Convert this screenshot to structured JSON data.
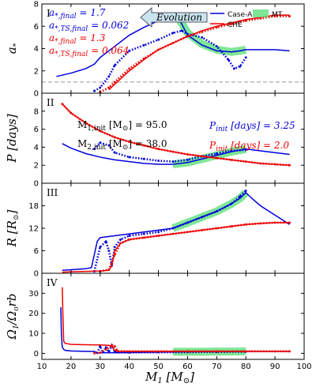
{
  "chart_data": {
    "type": "line",
    "xlabel": "M_1 [M_⊙]",
    "xlim": [
      10,
      100
    ],
    "xticks": [
      "10",
      "20",
      "30",
      "40",
      "50",
      "60",
      "70",
      "80",
      "90",
      "100"
    ],
    "legend": [
      {
        "name": "Case-A",
        "color": "#0000dd",
        "style": "line"
      },
      {
        "name": "CHE",
        "color": "#ee0000",
        "style": "line"
      },
      {
        "name": "MT",
        "color": "#5ee07a",
        "style": "band"
      }
    ],
    "colors": {
      "caseA": "#0000dd",
      "che": "#ee0000",
      "mt": "#5ee07a"
    },
    "panels": [
      {
        "id": "I",
        "ylabel": "a_*",
        "ylim": [
          0,
          8
        ],
        "yticks": [
          "0",
          "2",
          "4",
          "6",
          "8"
        ],
        "hline": 1,
        "annotations": {
          "blue1": "a_{*,final} = 1.7",
          "blue2": "a_{*,TS,final} = 0.062",
          "red1": "a_{*,final} = 1.3",
          "red2": "a_{*,TS,final} = 0.064",
          "arrow": "Evolution"
        },
        "series": [
          {
            "name": "Case-A",
            "style": "solid",
            "color": "#0000dd",
            "x": [
              15,
              20,
              25,
              28,
              30,
              35,
              40,
              45,
              50,
              55,
              57,
              60,
              65,
              70,
              75,
              78,
              80,
              85,
              90,
              95
            ],
            "y": [
              1.5,
              1.8,
              2.2,
              2.6,
              3.2,
              4.2,
              5.2,
              5.9,
              6.5,
              7.0,
              6.7,
              5.2,
              4.3,
              3.8,
              3.7,
              3.8,
              3.9,
              3.9,
              3.9,
              3.8
            ]
          },
          {
            "name": "Case-A (TS)",
            "style": "dotted",
            "color": "#0000dd",
            "x": [
              28,
              30,
              33,
              35,
              40,
              45,
              50,
              55,
              58,
              60,
              65,
              70,
              74,
              76,
              78,
              80
            ],
            "y": [
              0.2,
              0.5,
              1.5,
              2.5,
              3.8,
              4.3,
              4.8,
              5.4,
              5.6,
              5.3,
              5.0,
              4.2,
              3.0,
              2.2,
              2.4,
              3.2
            ]
          },
          {
            "name": "CHE",
            "style": "solid",
            "color": "#ee0000",
            "x": [
              33,
              35,
              40,
              45,
              50,
              55,
              60,
              65,
              70,
              75,
              80,
              85,
              90,
              95
            ],
            "y": [
              0.3,
              0.8,
              2.0,
              3.0,
              3.9,
              4.5,
              5.1,
              5.6,
              6.0,
              6.3,
              6.6,
              6.8,
              7.0,
              7.0
            ]
          },
          {
            "name": "CHE (TS)",
            "style": "dotted",
            "color": "#ee0000",
            "x": [
              30,
              33,
              35,
              40,
              45,
              50,
              55,
              60,
              65,
              70,
              75,
              80,
              85,
              90,
              95
            ],
            "y": [
              0.1,
              0.5,
              1.0,
              2.2,
              3.1,
              3.9,
              4.5,
              5.1,
              5.5,
              5.9,
              6.2,
              6.5,
              6.7,
              6.9,
              6.9
            ]
          }
        ],
        "mt_band": {
          "x": [
            55,
            57,
            60,
            65,
            70,
            75,
            78,
            80
          ],
          "y": [
            7.0,
            6.7,
            5.4,
            4.4,
            3.9,
            3.7,
            3.8,
            3.9
          ],
          "xrange": [
            55,
            80
          ]
        }
      },
      {
        "id": "II",
        "ylabel": "P [days]",
        "ylim": [
          0,
          10
        ],
        "yticks": [
          "0",
          "2",
          "4",
          "6",
          "8"
        ],
        "annotations": {
          "m1": "M_{1,init} [M_⊙] = 95.0",
          "m2": "M_{2,init} [M_⊙] = 38.0",
          "pblue": "P_{init} [days] = 3.25",
          "pred": "P_{init} [days] = 2.0"
        },
        "series": [
          {
            "name": "Case-A",
            "style": "solid",
            "color": "#0000dd",
            "x": [
              17,
              20,
              25,
              30,
              35,
              40,
              45,
              50,
              55,
              60,
              65,
              70,
              75,
              80,
              85,
              90,
              95
            ],
            "y": [
              4.4,
              3.9,
              3.3,
              2.9,
              2.6,
              2.4,
              2.2,
              2.1,
              2.1,
              2.3,
              2.7,
              3.1,
              3.5,
              3.8,
              3.6,
              3.4,
              3.2
            ]
          },
          {
            "name": "Case-A (TS)",
            "style": "dotted",
            "color": "#0000dd",
            "x": [
              28,
              30,
              33,
              35,
              40,
              45,
              50,
              55,
              60,
              65,
              70,
              75,
              80
            ],
            "y": [
              3.8,
              4.5,
              4.2,
              3.4,
              2.9,
              2.7,
              2.5,
              2.4,
              2.6,
              3.0,
              3.3,
              3.6,
              3.7
            ]
          },
          {
            "name": "CHE",
            "style": "solid",
            "color": "#ee0000",
            "x": [
              17,
              20,
              25,
              30,
              35,
              40,
              45,
              50,
              55,
              60,
              65,
              70,
              75,
              80,
              85,
              90,
              95
            ],
            "y": [
              8.8,
              7.8,
              6.7,
              5.8,
              5.1,
              4.6,
              4.2,
              3.8,
              3.5,
              3.2,
              3.0,
              2.8,
              2.6,
              2.4,
              2.2,
              2.1,
              2.0
            ]
          },
          {
            "name": "CHE (TS)",
            "style": "dotted",
            "color": "#ee0000",
            "x": [
              17,
              20,
              25,
              30,
              35,
              40,
              45,
              50,
              55,
              60,
              65,
              70,
              75,
              80,
              85,
              90,
              95
            ],
            "y": [
              8.8,
              7.8,
              6.7,
              5.8,
              5.1,
              4.6,
              4.2,
              3.8,
              3.5,
              3.2,
              3.0,
              2.8,
              2.6,
              2.4,
              2.2,
              2.1,
              2.0
            ]
          }
        ],
        "mt_band": {
          "x": [
            55,
            60,
            65,
            70,
            75,
            80
          ],
          "y": [
            2.1,
            2.3,
            2.7,
            3.1,
            3.5,
            3.8
          ],
          "xrange": [
            55,
            80
          ]
        }
      },
      {
        "id": "III",
        "ylabel": "R [R_⊙]",
        "ylim": [
          0,
          24
        ],
        "yticks": [
          "0",
          "6",
          "12",
          "18"
        ],
        "series": [
          {
            "name": "Case-A",
            "style": "solid",
            "color": "#0000dd",
            "x": [
              17,
              25,
              27,
              28,
              29,
              30,
              32,
              35,
              40,
              45,
              50,
              55,
              60,
              65,
              70,
              75,
              78,
              80,
              82,
              85,
              90,
              95
            ],
            "y": [
              0.8,
              1.2,
              1.5,
              5,
              8.5,
              9.5,
              9.7,
              10,
              10.5,
              11,
              11.5,
              12,
              13.5,
              15,
              16.5,
              18.5,
              20,
              21.5,
              20,
              18,
              15.5,
              13
            ]
          },
          {
            "name": "Case-A (TS)",
            "style": "dotted",
            "color": "#0000dd",
            "x": [
              28,
              30,
              32,
              33,
              34,
              35,
              37,
              40,
              45,
              50,
              55,
              60,
              65,
              70,
              75,
              78,
              80
            ],
            "y": [
              0.5,
              7,
              8.5,
              6,
              2,
              7,
              9,
              10,
              10.5,
              11,
              12,
              13.5,
              15,
              16.5,
              18.5,
              20.5,
              22
            ]
          },
          {
            "name": "CHE",
            "style": "solid",
            "color": "#ee0000",
            "x": [
              17,
              20,
              25,
              30,
              33,
              34,
              35,
              37,
              40,
              45,
              50,
              55,
              60,
              65,
              70,
              75,
              80,
              85,
              90,
              95
            ],
            "y": [
              0.3,
              0.4,
              0.5,
              0.6,
              0.8,
              2,
              6,
              8,
              9,
              9.5,
              10,
              10.5,
              11,
              11.5,
              12,
              12.5,
              13,
              13.3,
              13.5,
              13.5
            ]
          },
          {
            "name": "CHE (TS)",
            "style": "dotted",
            "color": "#ee0000",
            "x": [
              30,
              33,
              35,
              37,
              40,
              45,
              50,
              55,
              60,
              65,
              70,
              75,
              80,
              85,
              90,
              95
            ],
            "y": [
              0.5,
              1,
              5,
              8,
              9,
              9.5,
              10,
              10.5,
              11,
              11.5,
              12,
              12.5,
              13,
              13.3,
              13.5,
              13.5
            ]
          }
        ],
        "mt_band": {
          "x": [
            55,
            60,
            65,
            70,
            75,
            78,
            80
          ],
          "y": [
            12,
            13.5,
            15,
            16.5,
            18.5,
            20,
            21.5
          ],
          "xrange": [
            55,
            80
          ]
        }
      },
      {
        "id": "IV",
        "ylabel": "Ω_1/Ω_orb",
        "ylim": [
          -3,
          40
        ],
        "yticks": [
          "0",
          "10",
          "20",
          "30"
        ],
        "series": [
          {
            "name": "Case-A",
            "style": "solid",
            "color": "#0000dd",
            "x": [
              16.5,
              16.7,
              17,
              17.5,
              18,
              20,
              25,
              28,
              29,
              30,
              35,
              40,
              45,
              50,
              55,
              60,
              70,
              80,
              90,
              95
            ],
            "y": [
              23,
              10,
              3,
              2,
              1.5,
              1.2,
              1.0,
              1.0,
              0.2,
              0.3,
              0.3,
              0.4,
              0.5,
              0.6,
              0.7,
              0.8,
              0.9,
              1.0,
              1.0,
              1.0
            ]
          },
          {
            "name": "Case-A (TS)",
            "style": "dotted",
            "color": "#0000dd",
            "x": [
              28,
              29,
              30,
              31,
              32,
              33,
              34,
              35,
              36,
              40,
              50,
              60,
              70,
              80
            ],
            "y": [
              0.1,
              0.2,
              3.5,
              0.5,
              3,
              0.8,
              4,
              1,
              0.5,
              0.4,
              0.5,
              0.6,
              0.7,
              0.8
            ]
          },
          {
            "name": "CHE",
            "style": "solid",
            "color": "#ee0000",
            "x": [
              17,
              17.2,
              17.5,
              18,
              20,
              25,
              30,
              33,
              34,
              35,
              36,
              40,
              50,
              60,
              70,
              80,
              90,
              95
            ],
            "y": [
              33,
              20,
              6,
              5,
              4.5,
              4.3,
              4.2,
              4.0,
              3.5,
              1.5,
              1.0,
              1.0,
              1.0,
              1.0,
              1.0,
              1.0,
              1.0,
              1.0
            ]
          },
          {
            "name": "CHE (TS)",
            "style": "dotted",
            "color": "#ee0000",
            "x": [
              28,
              30,
              32,
              34,
              35,
              36,
              40,
              50,
              60,
              70,
              80,
              90,
              95
            ],
            "y": [
              0.1,
              0.3,
              2,
              4,
              3.5,
              1.2,
              1.0,
              1.0,
              1.0,
              1.0,
              1.0,
              1.0,
              1.0
            ]
          }
        ],
        "mt_band": {
          "x": [
            55,
            60,
            65,
            70,
            75,
            80
          ],
          "y": [
            0.8,
            0.8,
            0.8,
            0.9,
            0.9,
            1.0
          ],
          "xrange": [
            55,
            80
          ]
        }
      }
    ]
  }
}
